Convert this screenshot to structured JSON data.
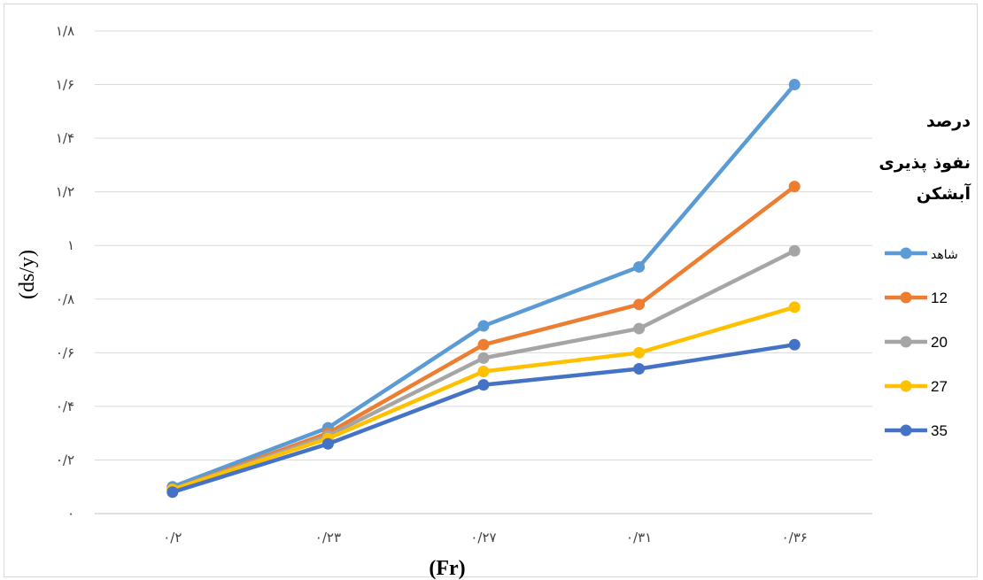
{
  "chart_data": {
    "type": "line",
    "title": "",
    "xlabel": "(Fr)",
    "ylabel": "(ds/y)",
    "categories": [
      "۰/۲",
      "۰/۲۳",
      "۰/۲۷",
      "۰/۳۱",
      "۰/۳۶"
    ],
    "y_ticks": [
      "۰",
      "۰/۲",
      "۰/۴",
      "۰/۶",
      "۰/۸",
      "۱",
      "۱/۲",
      "۱/۴",
      "۱/۶",
      "۱/۸"
    ],
    "ylim": [
      0,
      1.8
    ],
    "grid": true,
    "legend_position": "right",
    "legend_title": [
      "درصد",
      "نفوذ پذیری",
      "آبشکن"
    ],
    "series": [
      {
        "name": "شاهد",
        "color": "#5b9bd5",
        "values": [
          0.1,
          0.32,
          0.7,
          0.92,
          1.6
        ]
      },
      {
        "name": "12",
        "color": "#ed7d31",
        "values": [
          0.09,
          0.3,
          0.63,
          0.78,
          1.22
        ]
      },
      {
        "name": "20",
        "color": "#a5a5a5",
        "values": [
          0.09,
          0.29,
          0.58,
          0.69,
          0.98
        ]
      },
      {
        "name": "27",
        "color": "#ffc000",
        "values": [
          0.09,
          0.28,
          0.53,
          0.6,
          0.77
        ]
      },
      {
        "name": "35",
        "color": "#4472c4",
        "values": [
          0.08,
          0.26,
          0.48,
          0.54,
          0.63
        ]
      }
    ]
  }
}
